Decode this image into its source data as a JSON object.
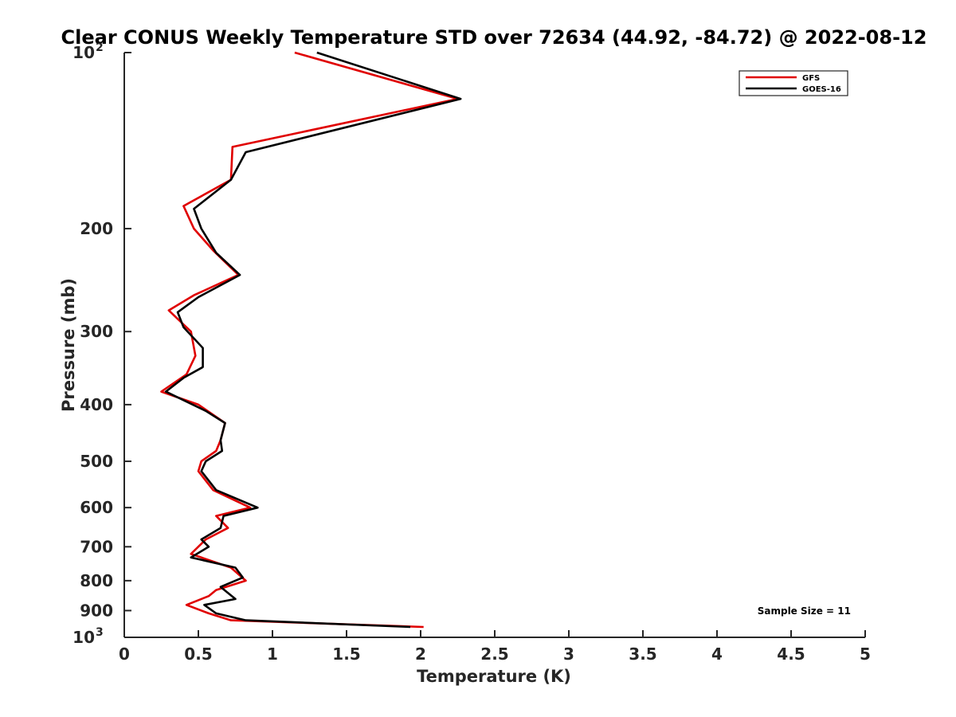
{
  "chart_data": {
    "type": "line",
    "title": "Clear CONUS Weekly Temperature STD over 72634 (44.92, -84.72) @ 2022-08-12",
    "xlabel": "Temperature (K)",
    "ylabel": "Pressure (mb)",
    "xlim": [
      0,
      5
    ],
    "ylim": [
      100,
      1000
    ],
    "yscale": "log",
    "y_reversed": true,
    "grid": false,
    "legend_position": "top-right",
    "x_ticks": [
      "0",
      "0.5",
      "1",
      "1.5",
      "2",
      "2.5",
      "3",
      "3.5",
      "4",
      "4.5",
      "5"
    ],
    "y_ticks": [
      {
        "value": 100,
        "base": "10",
        "exp": "2"
      },
      {
        "value": 200,
        "label": "200"
      },
      {
        "value": 300,
        "label": "300"
      },
      {
        "value": 400,
        "label": "400"
      },
      {
        "value": 500,
        "label": "500"
      },
      {
        "value": 600,
        "label": "600"
      },
      {
        "value": 700,
        "label": "700"
      },
      {
        "value": 800,
        "label": "800"
      },
      {
        "value": 900,
        "label": "900"
      },
      {
        "value": 1000,
        "base": "10",
        "exp": "3"
      }
    ],
    "series": [
      {
        "name": "GFS",
        "color": "#e00000",
        "points": [
          [
            1.15,
            100
          ],
          [
            2.25,
            120
          ],
          [
            0.73,
            145
          ],
          [
            0.72,
            165
          ],
          [
            0.4,
            183
          ],
          [
            0.47,
            200
          ],
          [
            0.6,
            218
          ],
          [
            0.77,
            240
          ],
          [
            0.47,
            260
          ],
          [
            0.3,
            276
          ],
          [
            0.45,
            300
          ],
          [
            0.48,
            330
          ],
          [
            0.42,
            355
          ],
          [
            0.25,
            380
          ],
          [
            0.5,
            400
          ],
          [
            0.68,
            430
          ],
          [
            0.65,
            460
          ],
          [
            0.62,
            480
          ],
          [
            0.52,
            500
          ],
          [
            0.5,
            520
          ],
          [
            0.6,
            560
          ],
          [
            0.85,
            600
          ],
          [
            0.62,
            620
          ],
          [
            0.7,
            650
          ],
          [
            0.55,
            680
          ],
          [
            0.45,
            720
          ],
          [
            0.72,
            760
          ],
          [
            0.82,
            800
          ],
          [
            0.62,
            830
          ],
          [
            0.57,
            850
          ],
          [
            0.42,
            880
          ],
          [
            0.57,
            910
          ],
          [
            0.72,
            935
          ],
          [
            2.02,
            960
          ]
        ]
      },
      {
        "name": "GOES-16",
        "color": "#000000",
        "points": [
          [
            1.3,
            100
          ],
          [
            2.27,
            120
          ],
          [
            0.82,
            148
          ],
          [
            0.72,
            165
          ],
          [
            0.47,
            185
          ],
          [
            0.52,
            200
          ],
          [
            0.62,
            220
          ],
          [
            0.78,
            240
          ],
          [
            0.5,
            262
          ],
          [
            0.36,
            278
          ],
          [
            0.4,
            295
          ],
          [
            0.53,
            320
          ],
          [
            0.53,
            345
          ],
          [
            0.4,
            360
          ],
          [
            0.28,
            380
          ],
          [
            0.55,
            410
          ],
          [
            0.68,
            430
          ],
          [
            0.65,
            460
          ],
          [
            0.66,
            480
          ],
          [
            0.55,
            500
          ],
          [
            0.52,
            520
          ],
          [
            0.62,
            560
          ],
          [
            0.9,
            600
          ],
          [
            0.67,
            620
          ],
          [
            0.65,
            650
          ],
          [
            0.52,
            680
          ],
          [
            0.57,
            700
          ],
          [
            0.45,
            730
          ],
          [
            0.75,
            760
          ],
          [
            0.8,
            790
          ],
          [
            0.65,
            820
          ],
          [
            0.75,
            860
          ],
          [
            0.54,
            880
          ],
          [
            0.62,
            910
          ],
          [
            0.82,
            935
          ],
          [
            1.93,
            960
          ]
        ]
      }
    ],
    "annotation": "Sample Size = 11"
  }
}
